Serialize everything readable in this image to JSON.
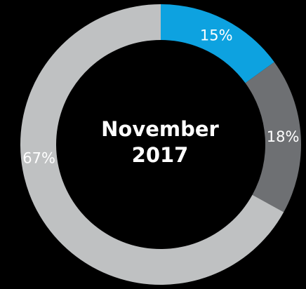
{
  "chart_data": {
    "type": "pie",
    "variant": "donut",
    "center_text": [
      "November",
      "2017"
    ],
    "slices": [
      {
        "label": "15%",
        "value": 15,
        "color": "#0da2e0"
      },
      {
        "label": "18%",
        "value": 18,
        "color": "#6e7073"
      },
      {
        "label": "67%",
        "value": 67,
        "color": "#bfc1c2"
      }
    ],
    "label_color": "#ffffff",
    "background": "#000000"
  }
}
